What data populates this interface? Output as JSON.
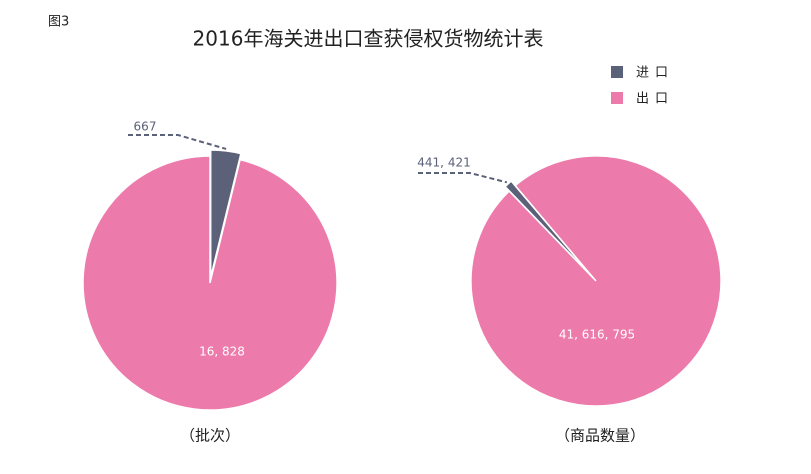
{
  "figure_label": "图3",
  "title": "2016年海关进出口查获侵权货物统计表",
  "chart_data": [
    {
      "type": "pie",
      "title": "（批次）",
      "categories": [
        "进口",
        "出口"
      ],
      "colors": [
        "#5b6178",
        "#ec7aab"
      ],
      "values": [
        667,
        16828
      ],
      "value_labels": [
        "667",
        "16, 828"
      ],
      "legend": "top-right"
    },
    {
      "type": "pie",
      "title": "（商品数量）",
      "categories": [
        "进口",
        "出口"
      ],
      "colors": [
        "#5b6178",
        "#ec7aab"
      ],
      "values": [
        441421,
        41616795
      ],
      "value_labels": [
        "441, 421",
        "41, 616, 795"
      ]
    }
  ]
}
